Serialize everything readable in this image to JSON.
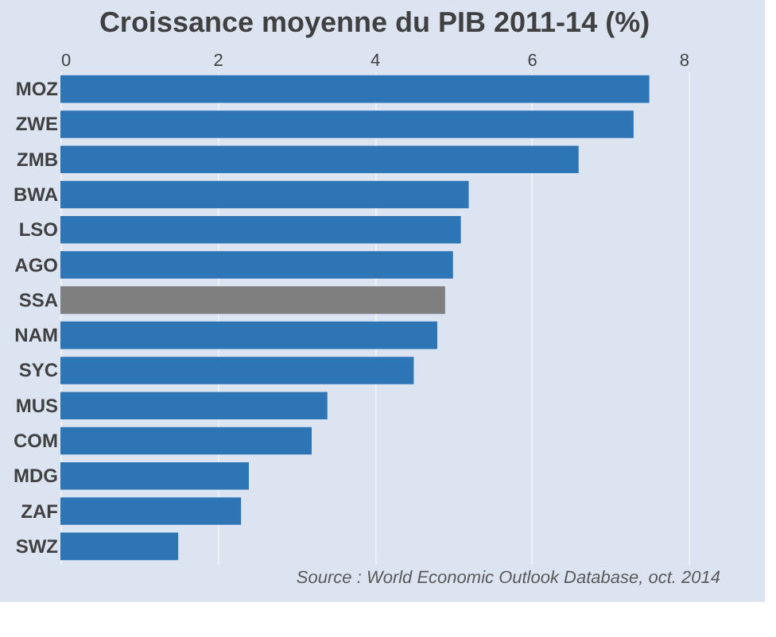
{
  "chart_data": {
    "type": "bar",
    "orientation": "horizontal",
    "title": "Croissance moyenne du PIB 2011-14 (%)",
    "categories": [
      "MOZ",
      "ZWE",
      "ZMB",
      "BWA",
      "LSO",
      "AGO",
      "SSA",
      "NAM",
      "SYC",
      "MUS",
      "COM",
      "MDG",
      "ZAF",
      "SWZ"
    ],
    "values": [
      7.5,
      7.3,
      6.6,
      5.2,
      5.1,
      5.0,
      4.9,
      4.8,
      4.5,
      3.4,
      3.2,
      2.4,
      2.3,
      1.5
    ],
    "colors": [
      "#2e75b6",
      "#2e75b6",
      "#2e75b6",
      "#2e75b6",
      "#2e75b6",
      "#2e75b6",
      "#7f7f7f",
      "#2e75b6",
      "#2e75b6",
      "#2e75b6",
      "#2e75b6",
      "#2e75b6",
      "#2e75b6",
      "#2e75b6"
    ],
    "xlim": [
      0,
      8
    ],
    "xticks": [
      0,
      2,
      4,
      6,
      8
    ],
    "grid": "x",
    "annotations": [
      "Source : World Economic Outlook Database, oct. 2014"
    ]
  }
}
